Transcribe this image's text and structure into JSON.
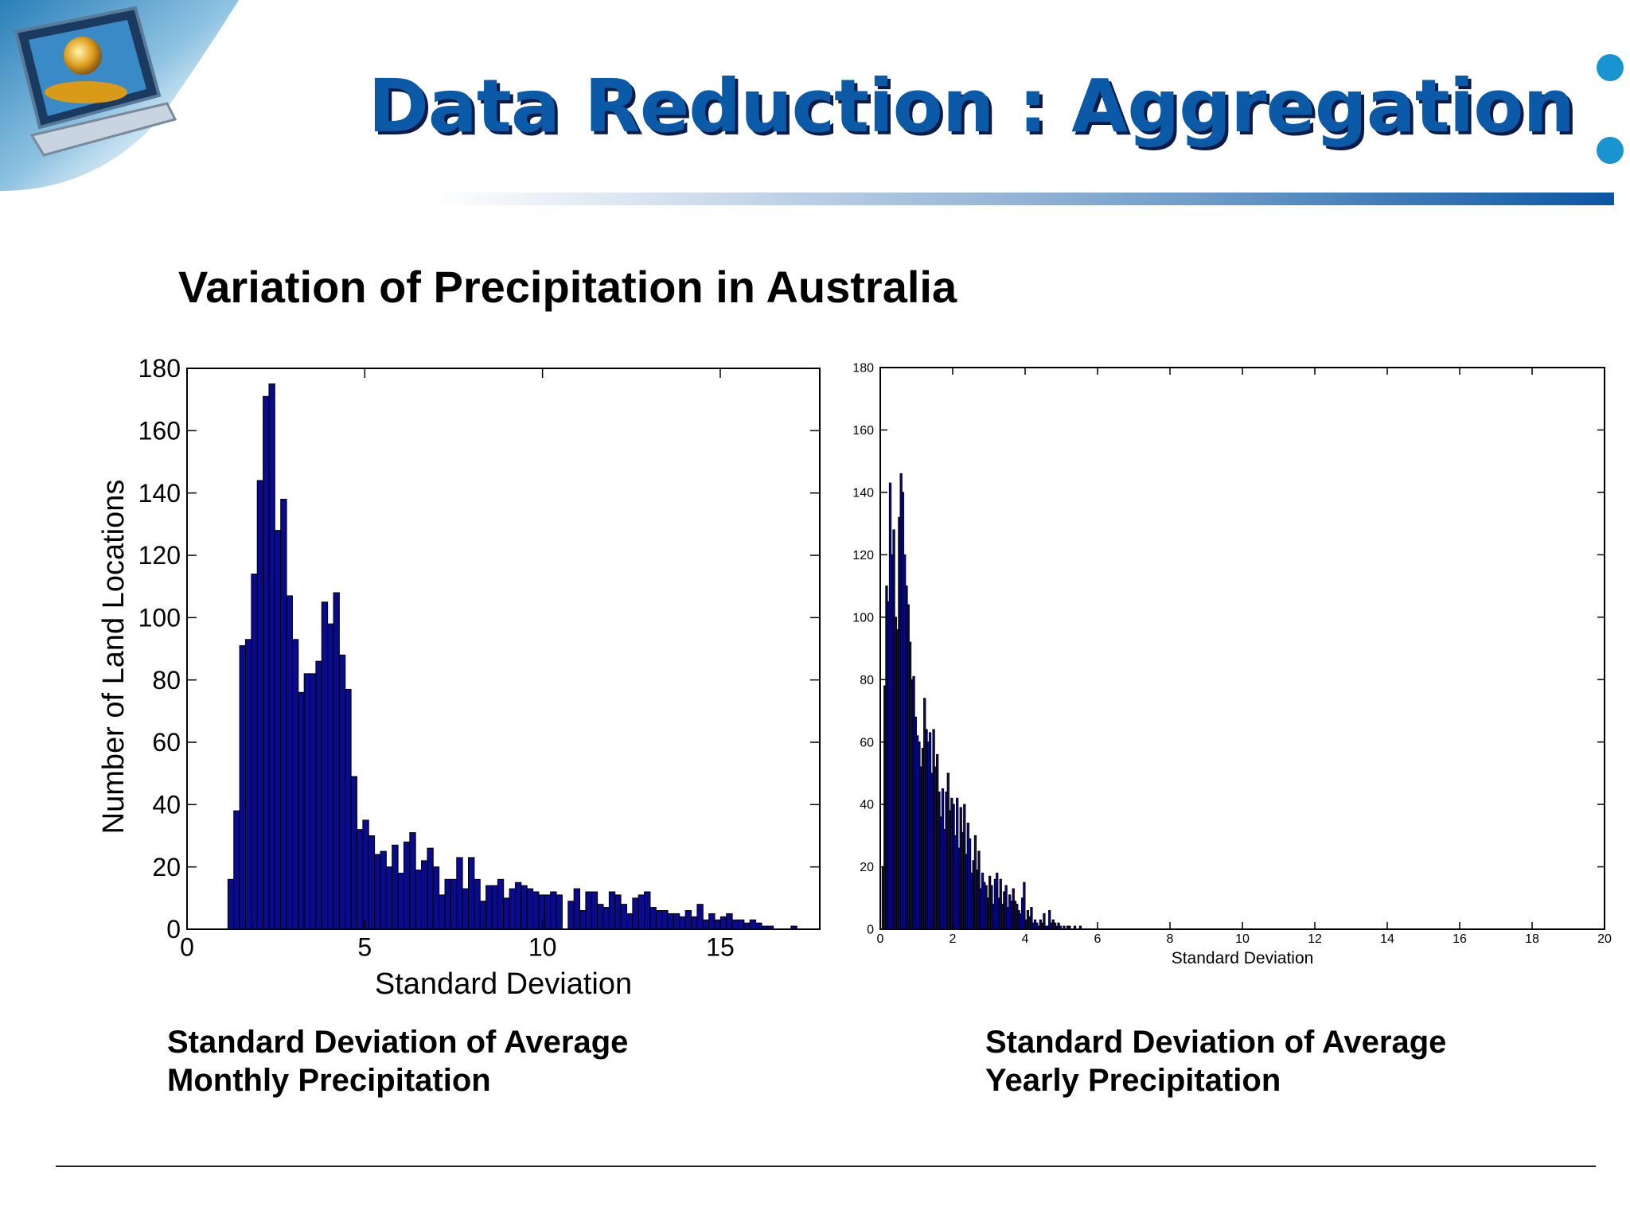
{
  "slide": {
    "title": "Data Reduction : Aggregation",
    "subtitle": "Variation of Precipitation in Australia",
    "captions": {
      "left_line1": "Standard Deviation of Average",
      "left_line2": "Monthly Precipitation",
      "right_line1": "Standard Deviation of Average",
      "right_line2": "Yearly Precipitation"
    }
  },
  "colors": {
    "title": "#0b5aa8",
    "title_shadow": "#0a1b4a",
    "bar_fill": "#0a0a8c",
    "bar_edge": "#000000",
    "accent_dot": "#1a93d1"
  },
  "chart_data": [
    {
      "type": "bar",
      "title": "",
      "xlabel": "Standard Deviation",
      "ylabel": "Number of Land Locations",
      "xlim": [
        0,
        17.8
      ],
      "ylim": [
        0,
        180
      ],
      "xticks": [
        0,
        5,
        10,
        15
      ],
      "yticks": [
        0,
        20,
        40,
        60,
        80,
        100,
        120,
        140,
        160,
        180
      ],
      "grid": false,
      "bin_start": 1.15,
      "bin_width": 0.165,
      "values": [
        16,
        38,
        91,
        93,
        114,
        144,
        171,
        175,
        128,
        138,
        107,
        93,
        76,
        82,
        82,
        86,
        105,
        98,
        108,
        88,
        77,
        49,
        32,
        35,
        30,
        24,
        25,
        20,
        27,
        18,
        28,
        31,
        19,
        22,
        26,
        20,
        11,
        16,
        16,
        23,
        13,
        23,
        16,
        9,
        14,
        14,
        16,
        10,
        13,
        15,
        14,
        13,
        12,
        11,
        11,
        12,
        11,
        0,
        9,
        13,
        6,
        12,
        12,
        8,
        7,
        12,
        11,
        8,
        5,
        10,
        11,
        12,
        7,
        6,
        6,
        5,
        5,
        4,
        6,
        4,
        8,
        3,
        5,
        3,
        4,
        5,
        3,
        3,
        2,
        3,
        2,
        1,
        1,
        0,
        0,
        0,
        1
      ]
    },
    {
      "type": "bar",
      "title": "",
      "xlabel": "Standard Deviation",
      "ylabel": "",
      "xlim": [
        0,
        20
      ],
      "ylim": [
        0,
        180
      ],
      "xticks": [
        0,
        2,
        4,
        6,
        8,
        10,
        12,
        14,
        16,
        18,
        20
      ],
      "yticks": [
        0,
        20,
        40,
        60,
        80,
        100,
        120,
        140,
        160,
        180
      ],
      "grid": false,
      "bin_start": 0.05,
      "bin_width": 0.05,
      "values": [
        20,
        78,
        110,
        105,
        143,
        120,
        128,
        100,
        96,
        132,
        146,
        140,
        120,
        110,
        104,
        92,
        80,
        81,
        68,
        62,
        60,
        52,
        58,
        74,
        64,
        60,
        63,
        50,
        64,
        52,
        56,
        44,
        36,
        45,
        32,
        44,
        50,
        38,
        42,
        40,
        30,
        42,
        26,
        39,
        31,
        40,
        24,
        34,
        29,
        18,
        22,
        30,
        19,
        25,
        13,
        18,
        15,
        14,
        10,
        17,
        14,
        8,
        16,
        18,
        10,
        16,
        8,
        12,
        14,
        7,
        11,
        9,
        13,
        9,
        8,
        6,
        5,
        10,
        15,
        3,
        6,
        4,
        7,
        2,
        3,
        2,
        1,
        3,
        2,
        5,
        1,
        1,
        6,
        2,
        3,
        2,
        1,
        2,
        1,
        0,
        1,
        0,
        1,
        1,
        0,
        0,
        1,
        0,
        0,
        1
      ]
    }
  ]
}
